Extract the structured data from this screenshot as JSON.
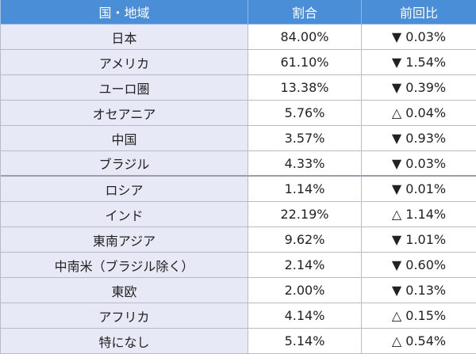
{
  "table": {
    "header": [
      "国・地域",
      "割合",
      "前回比"
    ],
    "rows": [
      [
        "日本",
        "84.00%",
        "▼ 0.03%"
      ],
      [
        "アメリカ",
        "61.10%",
        "▼ 1.54%"
      ],
      [
        "ユーロ圏",
        "13.38%",
        "▼ 0.39%"
      ],
      [
        "オセアニア",
        "5.76%",
        "△ 0.04%"
      ],
      [
        "中国",
        "3.57%",
        "▼ 0.93%"
      ],
      [
        "ブラジル",
        "4.33%",
        "▼ 0.03%"
      ],
      [
        "ロシア",
        "1.14%",
        "▼ 0.01%"
      ],
      [
        "インド",
        "22.19%",
        "△ 1.14%"
      ],
      [
        "東南アジア",
        "9.62%",
        "▼ 1.01%"
      ],
      [
        "中南米（ブラジル除く）",
        "2.14%",
        "▼ 0.60%"
      ],
      [
        "東欧",
        "2.00%",
        "▼ 0.13%"
      ],
      [
        "アフリカ",
        "4.14%",
        "△ 0.15%"
      ],
      [
        "特になし",
        "5.14%",
        "△ 0.54%"
      ]
    ]
  }
}
